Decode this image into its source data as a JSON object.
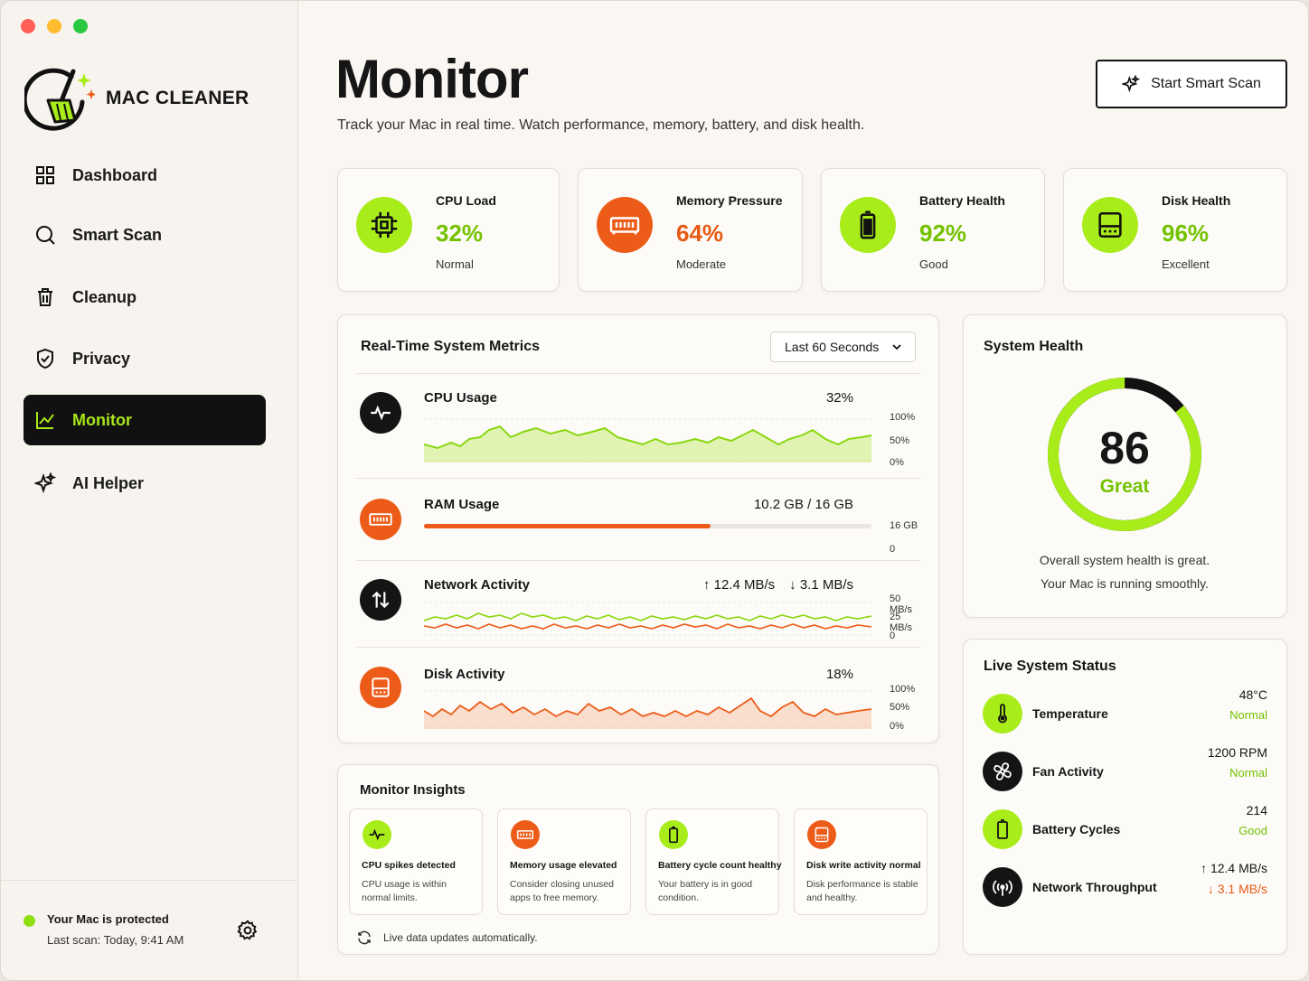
{
  "app": {
    "name": "MAC CLEANER"
  },
  "sidebar": {
    "items": [
      {
        "label": "Dashboard",
        "icon": "grid-icon"
      },
      {
        "label": "Smart Scan",
        "icon": "search-icon"
      },
      {
        "label": "Cleanup",
        "icon": "trash-icon"
      },
      {
        "label": "Privacy",
        "icon": "shield-icon"
      },
      {
        "label": "Monitor",
        "icon": "chart-line-icon",
        "active": true
      },
      {
        "label": "AI Helper",
        "icon": "sparkle-icon"
      }
    ],
    "footer": {
      "status": "Your Mac is protected",
      "last_scan": "Last scan: Today, 9:41 AM"
    }
  },
  "header": {
    "title": "Monitor",
    "subtitle": "Track your Mac in real time. Watch performance, memory, battery, and disk health.",
    "scan_button": "Start Smart Scan"
  },
  "stats": [
    {
      "label": "CPU Load",
      "value": "32%",
      "status": "Normal"
    },
    {
      "label": "Memory Pressure",
      "value": "64%",
      "status": "Moderate"
    },
    {
      "label": "Battery Health",
      "value": "92%",
      "status": "Good"
    },
    {
      "label": "Disk Health",
      "value": "96%",
      "status": "Excellent"
    }
  ],
  "metrics": {
    "title": "Real-Time System Metrics",
    "range": "Last 60 Seconds",
    "cpu": {
      "name": "CPU Usage",
      "value": "32%",
      "axis": [
        "100%",
        "50%",
        "0%"
      ]
    },
    "ram": {
      "name": "RAM Usage",
      "value": "10.2 GB / 16 GB",
      "fill": 0.64,
      "axis": [
        "16 GB",
        "0"
      ]
    },
    "network": {
      "name": "Network Activity",
      "up": "12.4 MB/s",
      "down": "3.1 MB/s",
      "axis": [
        "50 MB/s",
        "25 MB/s",
        "0"
      ]
    },
    "disk": {
      "name": "Disk Activity",
      "value": "18%",
      "axis": [
        "100%",
        "50%",
        "0%"
      ]
    }
  },
  "health": {
    "title": "System Health",
    "score": "86",
    "score_fraction": 0.86,
    "word": "Great",
    "line1": "Overall system health is great.",
    "line2": "Your Mac is running smoothly."
  },
  "live_status": {
    "title": "Live System Status",
    "rows": [
      {
        "name": "Temperature",
        "v1": "48°C",
        "v2": "Normal"
      },
      {
        "name": "Fan Activity",
        "v1": "1200 RPM",
        "v2": "Normal"
      },
      {
        "name": "Battery Cycles",
        "v1": "214",
        "v2": "Good"
      },
      {
        "name": "Network Throughput",
        "v1": "12.4 MB/s",
        "v2": "3.1 MB/s"
      }
    ]
  },
  "insights": {
    "title": "Monitor Insights",
    "cards": [
      {
        "title": "CPU spikes detected",
        "desc": "CPU usage is within normal limits."
      },
      {
        "title": "Memory usage elevated",
        "desc": "Consider closing unused apps to free memory."
      },
      {
        "title": "Battery cycle count healthy",
        "desc": "Your battery is in good condition."
      },
      {
        "title": "Disk write activity normal",
        "desc": "Disk performance is stable and healthy."
      }
    ],
    "note": "Live data updates automatically."
  },
  "colors": {
    "accent": "#a8ec1a",
    "warning": "#ec5c18",
    "dark": "#141414",
    "background": "#faf7f3"
  }
}
